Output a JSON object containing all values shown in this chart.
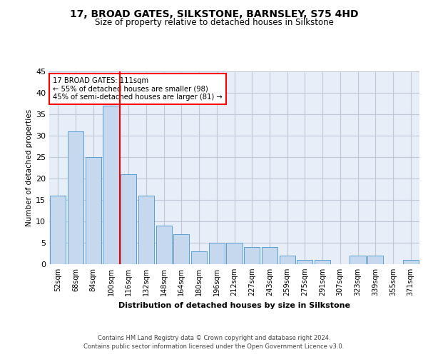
{
  "title1": "17, BROAD GATES, SILKSTONE, BARNSLEY, S75 4HD",
  "title2": "Size of property relative to detached houses in Silkstone",
  "xlabel": "Distribution of detached houses by size in Silkstone",
  "ylabel": "Number of detached properties",
  "categories": [
    "52sqm",
    "68sqm",
    "84sqm",
    "100sqm",
    "116sqm",
    "132sqm",
    "148sqm",
    "164sqm",
    "180sqm",
    "196sqm",
    "212sqm",
    "227sqm",
    "243sqm",
    "259sqm",
    "275sqm",
    "291sqm",
    "307sqm",
    "323sqm",
    "339sqm",
    "355sqm",
    "371sqm"
  ],
  "values": [
    16,
    31,
    25,
    37,
    21,
    16,
    9,
    7,
    3,
    5,
    5,
    4,
    4,
    2,
    1,
    1,
    0,
    2,
    2,
    0,
    1
  ],
  "bar_color": "#c5d8ed",
  "bar_edge_color": "#5a9fd4",
  "vline_color": "red",
  "vline_pos": 3.5,
  "annotation_text": "17 BROAD GATES: 111sqm\n← 55% of detached houses are smaller (98)\n45% of semi-detached houses are larger (81) →",
  "annotation_box_color": "white",
  "annotation_box_edge": "red",
  "ylim": [
    0,
    45
  ],
  "yticks": [
    0,
    5,
    10,
    15,
    20,
    25,
    30,
    35,
    40,
    45
  ],
  "grid_color": "#c0c8d8",
  "bg_color": "#e8eef8",
  "footer1": "Contains HM Land Registry data © Crown copyright and database right 2024.",
  "footer2": "Contains public sector information licensed under the Open Government Licence v3.0."
}
